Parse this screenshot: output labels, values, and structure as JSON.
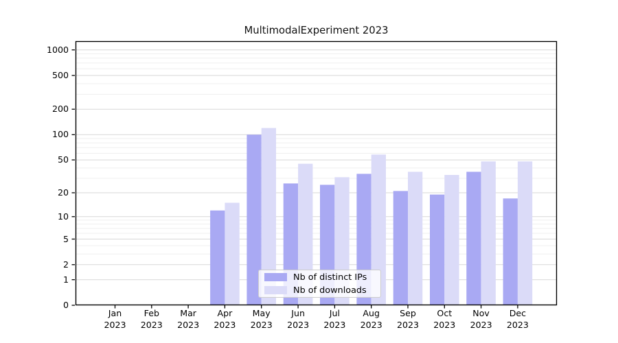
{
  "chart_data": {
    "type": "bar",
    "title": "MultimodalExperiment 2023",
    "categories": [
      "Jan",
      "Feb",
      "Mar",
      "Apr",
      "May",
      "Jun",
      "Jul",
      "Aug",
      "Sep",
      "Oct",
      "Nov",
      "Dec"
    ],
    "year_label": "2023",
    "series": [
      {
        "name": "Nb of distinct IPs",
        "color": "#a9a9f3",
        "values": [
          0,
          0,
          0,
          12,
          100,
          26,
          25,
          34,
          21,
          19,
          36,
          17
        ]
      },
      {
        "name": "Nb of downloads",
        "color": "#dbdbf8",
        "values": [
          0,
          0,
          0,
          15,
          120,
          45,
          31,
          58,
          36,
          33,
          48,
          48
        ]
      }
    ],
    "xlabel": "",
    "ylabel": "",
    "yscale": "log1p",
    "yticks": [
      0,
      1,
      2,
      5,
      10,
      20,
      50,
      100,
      200,
      500,
      1000
    ],
    "ylim": [
      0,
      1267
    ],
    "grid": "both",
    "legend_position": "lower center"
  },
  "colors": {
    "major_grid": "#d7d7d7",
    "minor_grid": "#efefef",
    "axis": "#000000",
    "legend_border": "#cccccc",
    "background": "#ffffff"
  }
}
